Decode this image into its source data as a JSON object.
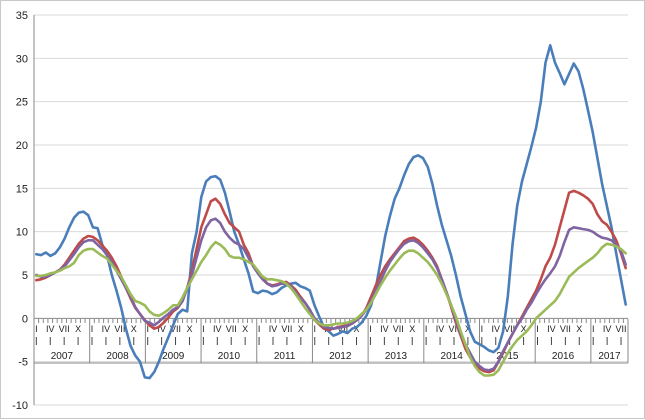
{
  "chart_data": {
    "type": "line",
    "title": "",
    "xlabel": "",
    "ylabel": "",
    "ylim": [
      -10,
      35
    ],
    "yticks": [
      -10,
      -5,
      0,
      5,
      10,
      15,
      20,
      25,
      30,
      35
    ],
    "grid": "horizontal",
    "legend": "none",
    "years": [
      "2007",
      "2008",
      "2009",
      "2010",
      "2011",
      "2012",
      "2013",
      "2014",
      "2015",
      "2016",
      "2017"
    ],
    "month_ticks": [
      "I",
      "IV",
      "VII",
      "X"
    ],
    "months_last_year": 8,
    "series": [
      {
        "color": "#4a7ebb",
        "values": [
          7.4,
          7.3,
          7.6,
          7.2,
          7.5,
          8.2,
          9.2,
          10.5,
          11.6,
          12.2,
          12.3,
          11.9,
          10.5,
          10.4,
          8.5,
          7.3,
          5.0,
          3.2,
          1.2,
          -1.2,
          -3.2,
          -4.3,
          -5.0,
          -6.8,
          -6.9,
          -6.2,
          -5.0,
          -3.5,
          -2.2,
          -0.8,
          0.5,
          1.0,
          0.8,
          7.5,
          10.0,
          14.0,
          15.8,
          16.3,
          16.4,
          16.0,
          14.5,
          12.3,
          10.0,
          8.5,
          6.8,
          5.2,
          3.1,
          2.9,
          3.2,
          3.1,
          2.8,
          3.0,
          3.5,
          3.8,
          4.0,
          4.1,
          3.7,
          3.5,
          3.2,
          1.5,
          0.2,
          -1.0,
          -1.5,
          -2.0,
          -1.8,
          -1.5,
          -1.7,
          -1.2,
          -1.0,
          -0.5,
          0.3,
          1.5,
          3.5,
          6.5,
          9.5,
          11.8,
          13.8,
          15.0,
          16.5,
          17.8,
          18.6,
          18.8,
          18.5,
          17.5,
          15.5,
          13.0,
          10.8,
          9.0,
          7.2,
          5.0,
          2.5,
          0.5,
          -1.5,
          -2.7,
          -3.0,
          -3.3,
          -3.7,
          -3.9,
          -3.4,
          -1.5,
          2.5,
          8.5,
          13.0,
          15.8,
          17.8,
          19.8,
          22.0,
          25.0,
          29.5,
          31.5,
          29.5,
          28.3,
          27.0,
          28.2,
          29.4,
          28.5,
          26.5,
          24.0,
          21.5,
          18.5,
          15.5,
          13.0,
          10.5,
          7.5,
          4.5,
          1.6
        ]
      },
      {
        "color": "#be4b48",
        "values": [
          4.4,
          4.5,
          4.7,
          5.0,
          5.3,
          5.6,
          6.2,
          7.0,
          7.8,
          8.6,
          9.2,
          9.5,
          9.4,
          9.0,
          8.4,
          7.8,
          7.0,
          6.0,
          4.8,
          3.5,
          2.3,
          1.2,
          0.5,
          -0.2,
          -0.8,
          -1.2,
          -1.0,
          -0.5,
          0.1,
          0.8,
          1.2,
          2.0,
          3.5,
          5.5,
          8.0,
          10.5,
          12.0,
          13.5,
          13.8,
          13.2,
          12.0,
          11.0,
          10.5,
          10.0,
          8.5,
          7.5,
          6.0,
          5.5,
          4.7,
          4.0,
          3.8,
          3.9,
          4.1,
          4.2,
          3.8,
          3.3,
          2.5,
          1.8,
          1.0,
          -0.2,
          -0.7,
          -1.2,
          -1.3,
          -1.2,
          -1.0,
          -0.9,
          -0.8,
          -0.6,
          -0.2,
          0.3,
          1.2,
          2.5,
          3.8,
          5.0,
          6.0,
          6.8,
          7.5,
          8.2,
          8.9,
          9.2,
          9.3,
          9.0,
          8.5,
          7.8,
          7.0,
          6.0,
          4.5,
          3.0,
          1.3,
          -0.5,
          -2.0,
          -3.5,
          -4.5,
          -5.2,
          -5.8,
          -6.1,
          -6.2,
          -6.0,
          -5.0,
          -4.0,
          -2.8,
          -1.8,
          -0.8,
          0.2,
          1.2,
          2.2,
          3.2,
          4.5,
          6.0,
          7.0,
          8.5,
          10.5,
          12.5,
          14.5,
          14.7,
          14.5,
          14.2,
          13.8,
          13.2,
          12.0,
          11.2,
          10.8,
          10.0,
          9.0,
          7.5,
          5.8
        ]
      },
      {
        "color": "#8064a2",
        "values": [
          5.0,
          4.8,
          4.8,
          5.0,
          5.3,
          5.6,
          6.0,
          6.7,
          7.4,
          8.2,
          8.8,
          9.0,
          9.0,
          8.5,
          8.0,
          7.3,
          6.5,
          5.5,
          4.5,
          3.5,
          2.5,
          1.3,
          0.5,
          -0.3,
          -0.5,
          -0.8,
          -0.4,
          0.1,
          0.5,
          1.0,
          1.3,
          2.0,
          3.5,
          5.0,
          7.0,
          9.0,
          10.5,
          11.3,
          11.5,
          11.0,
          10.0,
          9.3,
          8.8,
          8.5,
          8.0,
          7.0,
          6.0,
          5.2,
          4.5,
          4.0,
          3.7,
          3.8,
          4.0,
          4.0,
          3.7,
          3.0,
          2.3,
          1.8,
          1.0,
          0.0,
          -0.5,
          -1.0,
          -1.1,
          -1.2,
          -1.1,
          -1.0,
          -0.9,
          -0.6,
          -0.2,
          0.3,
          1.0,
          2.0,
          3.2,
          4.3,
          5.5,
          6.5,
          7.3,
          8.0,
          8.6,
          8.9,
          9.0,
          8.7,
          8.2,
          7.5,
          6.8,
          5.8,
          4.5,
          3.0,
          1.5,
          -0.2,
          -1.8,
          -3.0,
          -4.0,
          -5.0,
          -5.5,
          -5.9,
          -6.0,
          -5.8,
          -5.0,
          -3.8,
          -2.8,
          -1.8,
          -0.8,
          0.0,
          1.0,
          1.8,
          2.8,
          3.7,
          4.5,
          5.2,
          6.0,
          7.2,
          8.8,
          10.2,
          10.5,
          10.4,
          10.3,
          10.2,
          10.0,
          9.6,
          9.3,
          9.2,
          9.0,
          8.5,
          7.8,
          6.2
        ]
      },
      {
        "color": "#9bbb59",
        "values": [
          4.9,
          4.9,
          5.0,
          5.2,
          5.3,
          5.5,
          5.8,
          6.0,
          6.4,
          7.3,
          7.8,
          8.0,
          8.0,
          7.6,
          7.2,
          6.9,
          6.2,
          5.5,
          4.8,
          3.8,
          2.8,
          2.0,
          1.8,
          1.5,
          0.8,
          0.4,
          0.3,
          0.6,
          1.0,
          1.5,
          1.5,
          2.4,
          3.5,
          4.5,
          5.5,
          6.5,
          7.3,
          8.2,
          8.8,
          8.5,
          8.0,
          7.2,
          7.0,
          7.0,
          6.8,
          6.5,
          6.2,
          5.5,
          4.8,
          4.5,
          4.5,
          4.4,
          4.3,
          4.0,
          3.5,
          2.8,
          2.0,
          1.2,
          0.5,
          -0.2,
          -0.6,
          -0.8,
          -0.8,
          -0.7,
          -0.6,
          -0.6,
          -0.5,
          -0.3,
          0.0,
          0.5,
          1.0,
          1.8,
          2.8,
          3.8,
          4.7,
          5.5,
          6.2,
          6.9,
          7.5,
          7.8,
          7.8,
          7.5,
          7.0,
          6.5,
          5.8,
          5.0,
          4.0,
          2.8,
          1.5,
          0.2,
          -1.5,
          -3.0,
          -4.5,
          -5.5,
          -6.2,
          -6.6,
          -6.6,
          -6.5,
          -6.0,
          -5.0,
          -4.0,
          -3.2,
          -2.5,
          -2.0,
          -1.5,
          -0.8,
          0.0,
          0.5,
          1.0,
          1.5,
          2.0,
          2.8,
          3.8,
          4.8,
          5.3,
          5.8,
          6.2,
          6.6,
          7.0,
          7.5,
          8.2,
          8.6,
          8.5,
          8.3,
          8.0,
          7.5
        ]
      }
    ]
  }
}
